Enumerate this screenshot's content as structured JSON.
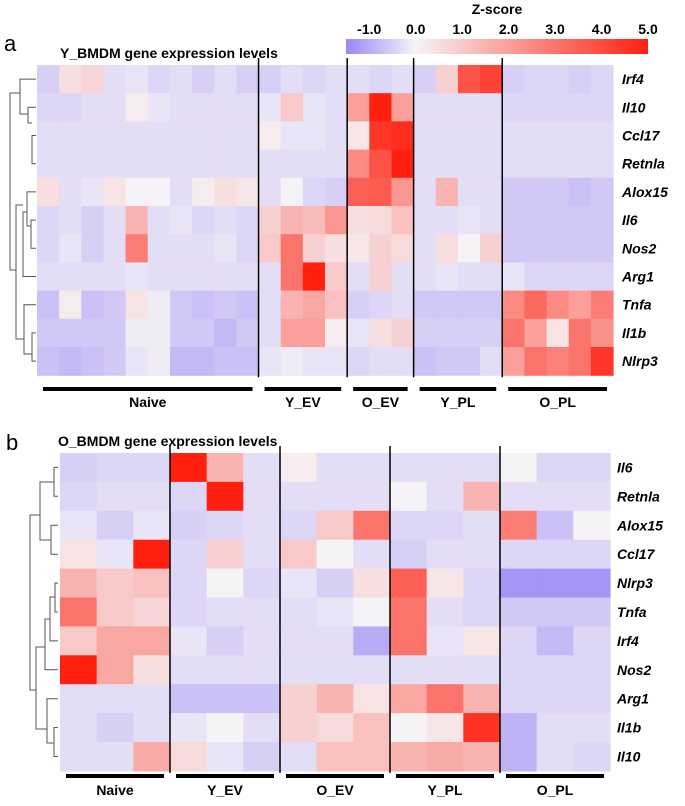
{
  "colorbar": {
    "title": "Z-score",
    "ticks": [
      "-1.0",
      "0.0",
      "1.0",
      "2.0",
      "3.0",
      "4.0",
      "5.0"
    ],
    "tick_values": [
      -1,
      0,
      1,
      2,
      3,
      4,
      5
    ],
    "range": [
      -1.5,
      5.0
    ],
    "colors": {
      "low": "#9b87f5",
      "mid": "#f6f3f6",
      "high": "#ff2010"
    }
  },
  "chart_data": [
    {
      "type": "heatmap",
      "panel": "a",
      "title": "Y_BMDM gene expression levels",
      "rows": [
        "Irf4",
        "Il10",
        "Ccl17",
        "Retnla",
        "Alox15",
        "Il6",
        "Nos2",
        "Arg1",
        "Tnfa",
        "Il1b",
        "Nlrp3"
      ],
      "groups": [
        {
          "label": "Naive",
          "n": 10
        },
        {
          "label": "Y_EV",
          "n": 4
        },
        {
          "label": "O_EV",
          "n": 3
        },
        {
          "label": "Y_PL",
          "n": 4
        },
        {
          "label": "O_PL",
          "n": 5
        }
      ],
      "values": [
        [
          -0.5,
          0.5,
          0.7,
          -0.3,
          -0.2,
          -0.4,
          -0.3,
          -0.5,
          -0.3,
          -0.5,
          -0.5,
          -0.3,
          -0.4,
          -0.3,
          -0.3,
          -0.4,
          -0.3,
          -0.5,
          0.8,
          3.8,
          4.2,
          -0.5,
          -0.4,
          -0.4,
          -0.5,
          -0.4
        ],
        [
          -0.4,
          -0.4,
          -0.3,
          -0.3,
          0.2,
          -0.2,
          -0.3,
          -0.3,
          -0.3,
          -0.3,
          -0.2,
          1.0,
          -0.2,
          -0.3,
          2.0,
          5.0,
          2.0,
          -0.3,
          -0.3,
          -0.3,
          -0.3,
          -0.4,
          -0.4,
          -0.4,
          -0.4,
          -0.4
        ],
        [
          -0.3,
          -0.3,
          -0.3,
          -0.3,
          -0.3,
          -0.3,
          -0.3,
          -0.3,
          -0.3,
          -0.3,
          0.2,
          -0.2,
          -0.2,
          -0.3,
          0.3,
          4.5,
          4.7,
          -0.3,
          -0.3,
          -0.3,
          -0.3,
          -0.3,
          -0.3,
          -0.3,
          -0.3,
          -0.3
        ],
        [
          -0.3,
          -0.3,
          -0.3,
          -0.3,
          -0.3,
          -0.3,
          -0.3,
          -0.3,
          -0.3,
          -0.3,
          -0.3,
          -0.3,
          -0.3,
          -0.3,
          2.5,
          3.8,
          5.0,
          -0.3,
          -0.3,
          -0.3,
          -0.3,
          -0.3,
          -0.3,
          -0.3,
          -0.3,
          -0.3
        ],
        [
          0.5,
          -0.3,
          -0.2,
          0.4,
          0.0,
          0.0,
          -0.3,
          0.2,
          0.5,
          0.3,
          -0.3,
          0.0,
          -0.4,
          -0.5,
          3.5,
          3.6,
          2.2,
          -0.3,
          1.5,
          -0.3,
          -0.3,
          -0.6,
          -0.6,
          -0.6,
          -0.7,
          -0.6
        ],
        [
          -0.4,
          -0.3,
          -0.5,
          -0.3,
          1.5,
          -0.3,
          -0.2,
          -0.4,
          -0.3,
          -0.4,
          0.8,
          1.5,
          1.3,
          2.2,
          0.5,
          0.6,
          1.2,
          -0.3,
          -0.3,
          -0.2,
          -0.3,
          -0.6,
          -0.6,
          -0.6,
          -0.6,
          -0.6
        ],
        [
          -0.4,
          -0.2,
          -0.5,
          -0.3,
          2.8,
          -0.3,
          -0.3,
          -0.3,
          -0.2,
          -0.4,
          1.0,
          3.0,
          0.8,
          0.5,
          0.3,
          0.8,
          0.6,
          -0.3,
          0.5,
          0.0,
          0.8,
          -0.6,
          -0.6,
          -0.6,
          -0.6,
          -0.6
        ],
        [
          -0.3,
          -0.3,
          -0.3,
          -0.3,
          -0.2,
          -0.3,
          -0.3,
          -0.3,
          -0.3,
          -0.3,
          -0.3,
          3.0,
          5.0,
          1.0,
          -0.3,
          0.8,
          -0.3,
          -0.3,
          -0.2,
          -0.3,
          -0.3,
          -0.2,
          -0.4,
          -0.4,
          -0.4,
          -0.4
        ],
        [
          -0.7,
          0.2,
          -0.7,
          -0.6,
          0.4,
          -0.1,
          -0.6,
          -0.7,
          -0.6,
          -0.7,
          -0.3,
          1.5,
          1.8,
          1.2,
          -0.5,
          -0.4,
          -0.3,
          -0.6,
          -0.6,
          -0.6,
          -0.6,
          2.5,
          3.3,
          2.5,
          2.0,
          2.8
        ],
        [
          -0.6,
          -0.6,
          -0.6,
          -0.6,
          -0.1,
          -0.1,
          -0.6,
          -0.6,
          -0.8,
          -0.6,
          -0.3,
          2.0,
          2.0,
          0.2,
          -0.2,
          0.5,
          0.8,
          -0.5,
          -0.5,
          -0.5,
          -0.5,
          3.0,
          2.0,
          0.4,
          3.0,
          2.3
        ],
        [
          -0.7,
          -0.8,
          -0.7,
          -0.6,
          -0.2,
          -0.1,
          -0.8,
          -0.8,
          -0.7,
          -0.7,
          -0.2,
          -0.1,
          -0.2,
          -0.2,
          -0.4,
          -0.3,
          -0.3,
          -0.7,
          -0.6,
          -0.6,
          -0.3,
          2.0,
          3.0,
          2.7,
          3.0,
          4.5
        ]
      ]
    },
    {
      "type": "heatmap",
      "panel": "b",
      "title": "O_BMDM gene expression levels",
      "rows": [
        "Il6",
        "Retnla",
        "Alox15",
        "Ccl17",
        "Nlrp3",
        "Tnfa",
        "Irf4",
        "Nos2",
        "Arg1",
        "Il1b",
        "Il10"
      ],
      "groups": [
        {
          "label": "Naive",
          "n": 3
        },
        {
          "label": "Y_EV",
          "n": 3
        },
        {
          "label": "O_EV",
          "n": 3
        },
        {
          "label": "Y_PL",
          "n": 3
        },
        {
          "label": "O_PL",
          "n": 3
        }
      ],
      "values": [
        [
          -0.5,
          -0.4,
          -0.4,
          5.0,
          1.5,
          -0.3,
          0.2,
          -0.3,
          -0.3,
          -0.3,
          -0.3,
          -0.3,
          0.0,
          -0.4,
          -0.4
        ],
        [
          -0.4,
          -0.3,
          -0.3,
          -0.4,
          5.0,
          -0.3,
          -0.3,
          -0.3,
          -0.3,
          0.0,
          -0.3,
          1.5,
          -0.3,
          -0.3,
          -0.3
        ],
        [
          -0.2,
          -0.5,
          -0.2,
          -0.5,
          -0.4,
          -0.3,
          -0.4,
          1.0,
          3.0,
          -0.4,
          -0.4,
          -0.3,
          2.8,
          -0.7,
          0.0
        ],
        [
          0.4,
          -0.2,
          5.0,
          -0.4,
          0.8,
          -0.3,
          1.0,
          0.0,
          -0.3,
          -0.5,
          -0.3,
          -0.3,
          -0.4,
          -0.4,
          -0.4
        ],
        [
          1.5,
          1.0,
          1.2,
          -0.4,
          0.0,
          -0.4,
          -0.2,
          -0.5,
          0.5,
          3.5,
          0.3,
          -0.4,
          -1.3,
          -1.3,
          -1.3
        ],
        [
          3.0,
          1.0,
          0.7,
          -0.4,
          -0.3,
          -0.3,
          -0.3,
          -0.2,
          0.0,
          3.0,
          -0.3,
          -0.4,
          -0.6,
          -0.6,
          -0.6
        ],
        [
          1.0,
          1.8,
          1.8,
          -0.2,
          -0.5,
          -0.3,
          -0.3,
          -0.3,
          -1.0,
          3.0,
          -0.2,
          0.3,
          -0.4,
          -0.8,
          -0.4
        ],
        [
          5.0,
          1.8,
          0.5,
          -0.3,
          -0.3,
          -0.3,
          -0.3,
          -0.3,
          -0.3,
          -0.3,
          -0.3,
          -0.3,
          -0.4,
          -0.4,
          -0.4
        ],
        [
          -0.3,
          -0.3,
          -0.3,
          -0.7,
          -0.7,
          -0.7,
          0.8,
          1.5,
          0.4,
          1.8,
          3.0,
          1.5,
          -0.4,
          -0.4,
          -0.4
        ],
        [
          -0.3,
          -0.5,
          -0.3,
          -0.2,
          0.0,
          -0.3,
          0.8,
          0.6,
          1.2,
          0.0,
          0.3,
          4.6,
          -0.9,
          -0.3,
          -0.3
        ],
        [
          -0.3,
          -0.3,
          1.7,
          0.6,
          -0.2,
          -0.5,
          -0.3,
          1.2,
          1.2,
          1.5,
          1.7,
          1.5,
          -0.9,
          -0.3,
          -0.4
        ]
      ]
    }
  ]
}
